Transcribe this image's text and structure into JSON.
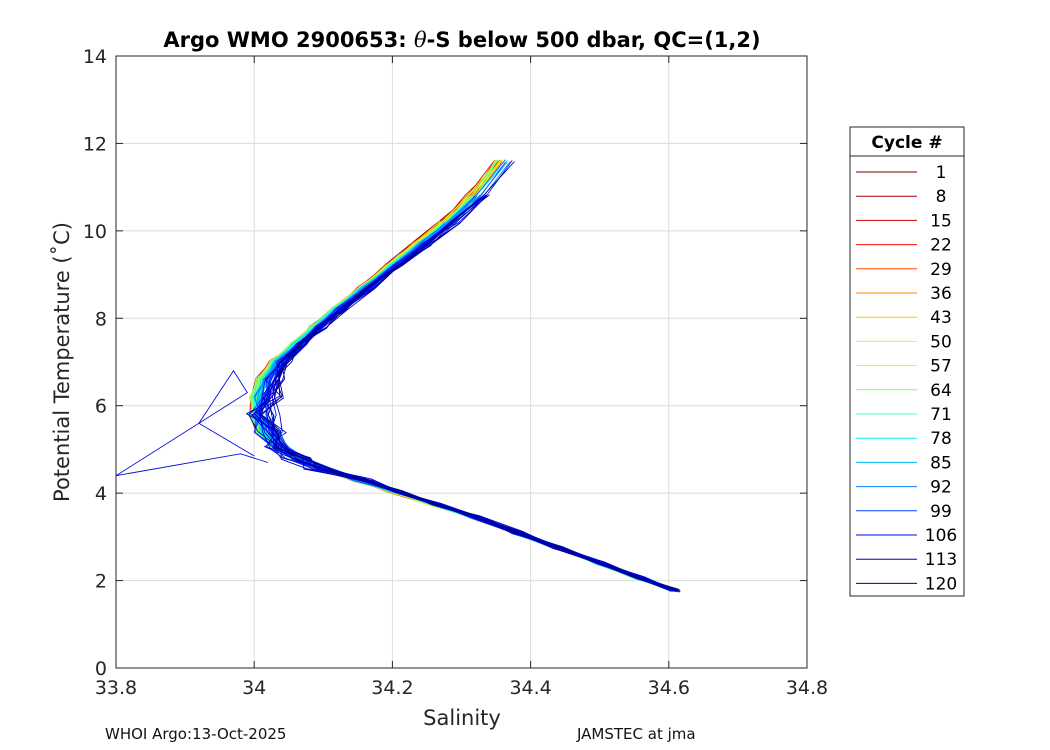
{
  "chart_data": {
    "type": "line",
    "title_prefix": "Argo WMO 2900653: ",
    "title_symbol": "θ",
    "title_suffix": "-S below 500 dbar,  QC=(1,2)",
    "xlabel": "Salinity",
    "ylabel": "Potential Temperature (˚C)",
    "xlim": [
      33.8,
      34.8
    ],
    "ylim": [
      0,
      14
    ],
    "xticks": [
      "33.8",
      "34",
      "34.2",
      "34.4",
      "34.6",
      "34.8"
    ],
    "xtick_values": [
      33.8,
      34.0,
      34.2,
      34.4,
      34.6,
      34.8
    ],
    "yticks": [
      "0",
      "2",
      "4",
      "6",
      "8",
      "10",
      "12",
      "14"
    ],
    "ytick_values": [
      0,
      2,
      4,
      6,
      8,
      10,
      12,
      14
    ],
    "grid": true,
    "legend": {
      "title": "Cycle #",
      "placement": "right",
      "entries": [
        "1",
        "8",
        "15",
        "22",
        "29",
        "36",
        "43",
        "50",
        "57",
        "64",
        "71",
        "78",
        "85",
        "92",
        "99",
        "106",
        "113",
        "120"
      ],
      "colors": [
        "#6e0000",
        "#a00000",
        "#d40000",
        "#f81000",
        "#ff4c00",
        "#ff8800",
        "#ffc400",
        "#f5f500",
        "#b8ff40",
        "#7cff7c",
        "#40ffb8",
        "#04f4f4",
        "#00b8ff",
        "#007cff",
        "#0040ff",
        "#0004fc",
        "#0000c8",
        "#00008f"
      ]
    },
    "profile_shape": {
      "salinity": [
        34.61,
        34.56,
        34.5,
        34.44,
        34.38,
        34.32,
        34.26,
        34.2,
        34.15,
        34.1,
        34.06,
        34.03,
        34.01,
        34.0,
        34.0,
        34.01,
        34.03,
        34.06,
        34.09,
        34.12,
        34.16,
        34.2,
        34.24,
        34.28,
        34.32,
        34.36
      ],
      "temperature": [
        1.77,
        2.05,
        2.4,
        2.75,
        3.1,
        3.45,
        3.75,
        4.05,
        4.3,
        4.55,
        4.8,
        5.05,
        5.4,
        5.8,
        6.2,
        6.6,
        7.0,
        7.4,
        7.8,
        8.2,
        8.7,
        9.2,
        9.7,
        10.2,
        10.8,
        11.6
      ]
    }
  },
  "footer": {
    "left": "WHOI Argo:13-Oct-2025",
    "right": "JAMSTEC at jma"
  }
}
